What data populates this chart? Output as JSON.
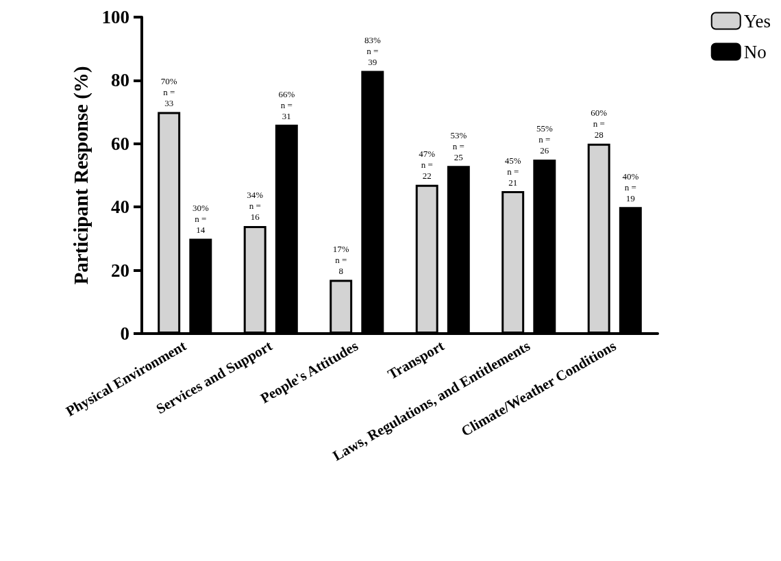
{
  "chart_data": {
    "type": "bar",
    "ylabel": "Participant Response (%)",
    "categories": [
      "Physical Environment",
      "Services and Support",
      "People's Attitudes",
      "Transport",
      "Laws, Regulations, and Entitlements",
      "Climate/Weather Conditions"
    ],
    "series": [
      {
        "name": "Yes",
        "color": "#d3d3d3",
        "values": [
          70,
          34,
          17,
          47,
          45,
          60
        ],
        "value_labels": [
          "70%\nn =\n33",
          "34%\nn =\n16",
          "17%\nn =\n8",
          "47%\nn =\n22",
          "45%\nn =\n21",
          "60%\nn =\n28"
        ]
      },
      {
        "name": "No",
        "color": "#000000",
        "values": [
          30,
          66,
          83,
          53,
          55,
          40
        ],
        "value_labels": [
          "30%\nn =\n14",
          "66%\nn =\n31",
          "83%\nn =\n39",
          "53%\nn =\n25",
          "55%\nn =\n26",
          "40%\nn =\n19"
        ]
      }
    ],
    "ylim": [
      0,
      100
    ],
    "yticks": [
      0,
      20,
      40,
      60,
      80,
      100
    ],
    "grid": false,
    "legend": "top right"
  }
}
